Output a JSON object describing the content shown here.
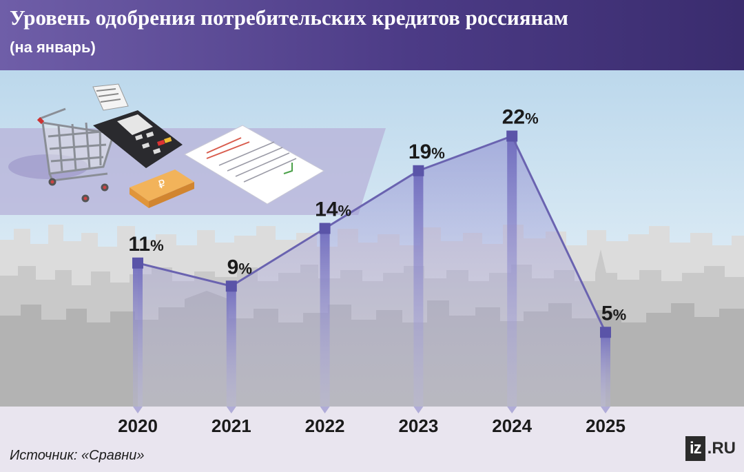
{
  "header": {
    "title": "Уровень одобрения потребительских кредитов россиянам",
    "subtitle": "(на январь)"
  },
  "footer": {
    "source": "Источник: «Сравни»",
    "logo_box": "iz",
    "logo_text": ".RU"
  },
  "colors": {
    "header_start": "#6f5ea8",
    "header_end": "#3a2c6e",
    "line": "#6a63b0",
    "marker": "#5a54a8",
    "bar": "#8a86c8",
    "axis_band": "#e9e5ef"
  },
  "icons": [
    "shopping-cart-icon",
    "card-terminal-icon",
    "money-stack-icon",
    "document-icon"
  ],
  "chart_data": {
    "type": "line",
    "title": "Уровень одобрения потребительских кредитов россиянам",
    "subtitle": "(на январь)",
    "categories": [
      "2020",
      "2021",
      "2022",
      "2023",
      "2024",
      "2025"
    ],
    "values": [
      11,
      9,
      14,
      19,
      22,
      5
    ],
    "value_labels": [
      "11",
      "9",
      "14",
      "19",
      "22",
      "5"
    ],
    "unit": "%",
    "ylim": [
      0,
      24
    ],
    "grid": false,
    "legend": "none"
  }
}
